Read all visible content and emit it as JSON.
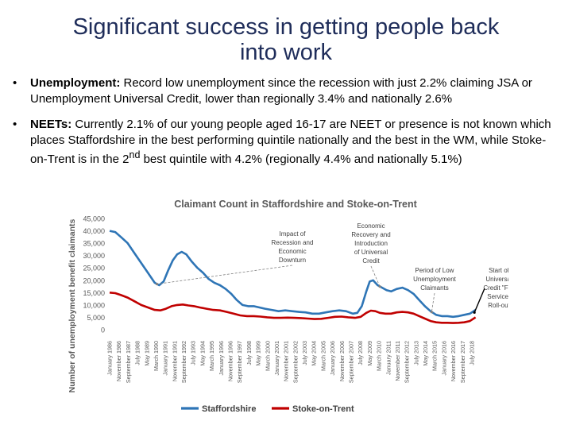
{
  "slide": {
    "title_line1": "Significant success in getting people back",
    "title_line2": "into work",
    "bullets": [
      {
        "marker": "•",
        "label": "Unemployment:",
        "text": " Record low unemployment since the recession with just 2.2% claiming JSA or Unemployment Universal Credit, lower than regionally 3.4% and nationally 2.6%"
      },
      {
        "marker": "•",
        "label": "NEETs:",
        "text_a": " Currently 2.1% of our young people aged 16-17 are NEET or presence is not known which places Staffordshire in the best performing quintile nationally and the best in the WM, while Stoke-on-Trent is in the 2",
        "sup": "nd",
        "text_b": " best quintile with 4.2% (regionally 4.4% and nationally 5.1%)"
      }
    ]
  },
  "chart_data": {
    "type": "line",
    "title": "Claimant Count in Staffordshire and Stoke-on-Trent",
    "ylabel": "Number of unemployment  benefit claimants",
    "ylim": [
      0,
      45000
    ],
    "yticks": [
      "0",
      "5,000",
      "10,000",
      "15,000",
      "20,000",
      "25,000",
      "30,000",
      "35,000",
      "40,000",
      "45,000"
    ],
    "xrange": [
      1986.0,
      2018.6
    ],
    "x_tick_labels": [
      "January 1986",
      "November 1986",
      "September 1987",
      "July 1988",
      "May 1989",
      "March 1990",
      "January 1991",
      "November 1991",
      "September 1992",
      "July 1993",
      "May 1994",
      "March 1995",
      "January 1996",
      "November 1996",
      "September 1997",
      "July 1998",
      "May 1999",
      "March 2000",
      "January 2001",
      "November 2001",
      "September 2002",
      "July 2003",
      "May 2004",
      "March 2005",
      "January 2006",
      "November 2006",
      "September 2007",
      "July 2008",
      "May 2009",
      "March 2010",
      "January 2011",
      "November 2011",
      "September 2012",
      "July 2013",
      "May 2014",
      "March 2015",
      "January 2016",
      "November 2016",
      "September 2017",
      "July 2018"
    ],
    "series": [
      {
        "name": "Staffordshire",
        "color": "#2e75b6",
        "points": [
          [
            1986.0,
            40000
          ],
          [
            1986.5,
            39500
          ],
          [
            1987.0,
            37500
          ],
          [
            1987.6,
            35000
          ],
          [
            1988.2,
            31000
          ],
          [
            1988.8,
            27000
          ],
          [
            1989.4,
            23000
          ],
          [
            1990.0,
            19000
          ],
          [
            1990.4,
            18000
          ],
          [
            1990.8,
            19500
          ],
          [
            1991.2,
            24000
          ],
          [
            1991.6,
            28000
          ],
          [
            1992.0,
            30500
          ],
          [
            1992.4,
            31500
          ],
          [
            1992.8,
            30500
          ],
          [
            1993.3,
            27500
          ],
          [
            1993.8,
            25000
          ],
          [
            1994.3,
            23000
          ],
          [
            1994.8,
            20500
          ],
          [
            1995.3,
            19000
          ],
          [
            1995.8,
            18000
          ],
          [
            1996.3,
            16500
          ],
          [
            1996.8,
            14500
          ],
          [
            1997.3,
            12000
          ],
          [
            1997.8,
            10000
          ],
          [
            1998.3,
            9500
          ],
          [
            1998.8,
            9500
          ],
          [
            1999.3,
            9000
          ],
          [
            1999.8,
            8500
          ],
          [
            2000.4,
            8000
          ],
          [
            2001.0,
            7500
          ],
          [
            2001.6,
            7800
          ],
          [
            2002.2,
            7500
          ],
          [
            2002.8,
            7200
          ],
          [
            2003.4,
            7000
          ],
          [
            2004.0,
            6500
          ],
          [
            2004.6,
            6500
          ],
          [
            2005.2,
            7000
          ],
          [
            2005.8,
            7500
          ],
          [
            2006.4,
            7800
          ],
          [
            2007.0,
            7500
          ],
          [
            2007.6,
            6500
          ],
          [
            2008.0,
            6800
          ],
          [
            2008.4,
            9500
          ],
          [
            2008.8,
            15500
          ],
          [
            2009.1,
            19500
          ],
          [
            2009.4,
            20000
          ],
          [
            2009.8,
            18000
          ],
          [
            2010.2,
            17000
          ],
          [
            2010.6,
            16000
          ],
          [
            2011.0,
            15500
          ],
          [
            2011.5,
            16500
          ],
          [
            2012.0,
            17000
          ],
          [
            2012.5,
            16000
          ],
          [
            2013.0,
            14500
          ],
          [
            2013.5,
            12000
          ],
          [
            2014.0,
            9500
          ],
          [
            2014.5,
            7500
          ],
          [
            2015.0,
            6000
          ],
          [
            2015.5,
            5500
          ],
          [
            2016.0,
            5500
          ],
          [
            2016.5,
            5200
          ],
          [
            2017.0,
            5500
          ],
          [
            2017.5,
            6000
          ],
          [
            2018.0,
            6500
          ],
          [
            2018.5,
            8000
          ]
        ]
      },
      {
        "name": "Stoke-on-Trent",
        "color": "#c00000",
        "points": [
          [
            1986.0,
            15000
          ],
          [
            1986.5,
            14800
          ],
          [
            1987.0,
            14000
          ],
          [
            1987.6,
            13000
          ],
          [
            1988.2,
            11500
          ],
          [
            1988.8,
            10000
          ],
          [
            1989.4,
            9000
          ],
          [
            1990.0,
            8000
          ],
          [
            1990.5,
            7800
          ],
          [
            1991.0,
            8500
          ],
          [
            1991.5,
            9500
          ],
          [
            1992.0,
            10000
          ],
          [
            1992.5,
            10200
          ],
          [
            1993.0,
            9800
          ],
          [
            1993.5,
            9500
          ],
          [
            1994.0,
            9000
          ],
          [
            1994.6,
            8500
          ],
          [
            1995.2,
            8000
          ],
          [
            1995.8,
            7800
          ],
          [
            1996.4,
            7200
          ],
          [
            1997.0,
            6500
          ],
          [
            1997.6,
            5800
          ],
          [
            1998.2,
            5500
          ],
          [
            1998.8,
            5500
          ],
          [
            1999.4,
            5300
          ],
          [
            2000.0,
            5000
          ],
          [
            2000.6,
            4800
          ],
          [
            2001.2,
            4800
          ],
          [
            2001.8,
            4900
          ],
          [
            2002.4,
            4800
          ],
          [
            2003.0,
            4700
          ],
          [
            2003.6,
            4500
          ],
          [
            2004.2,
            4300
          ],
          [
            2004.8,
            4400
          ],
          [
            2005.4,
            4800
          ],
          [
            2006.0,
            5200
          ],
          [
            2006.6,
            5300
          ],
          [
            2007.2,
            5000
          ],
          [
            2007.8,
            4800
          ],
          [
            2008.3,
            5200
          ],
          [
            2008.8,
            6800
          ],
          [
            2009.2,
            7700
          ],
          [
            2009.6,
            7500
          ],
          [
            2010.0,
            6800
          ],
          [
            2010.5,
            6500
          ],
          [
            2011.0,
            6500
          ],
          [
            2011.5,
            7000
          ],
          [
            2012.0,
            7200
          ],
          [
            2012.5,
            7000
          ],
          [
            2013.0,
            6500
          ],
          [
            2013.5,
            5500
          ],
          [
            2014.0,
            4500
          ],
          [
            2014.5,
            3500
          ],
          [
            2015.0,
            3000
          ],
          [
            2015.5,
            2800
          ],
          [
            2016.0,
            2800
          ],
          [
            2016.5,
            2700
          ],
          [
            2017.0,
            2800
          ],
          [
            2017.5,
            3000
          ],
          [
            2018.0,
            3500
          ],
          [
            2018.5,
            5000
          ]
        ]
      }
    ],
    "annotations": [
      {
        "lines": [
          "Impact of",
          "Recession and",
          "Economic",
          "Downturn"
        ],
        "x": 1990.2,
        "y": 17500
      },
      {
        "lines": [
          "Economic",
          "Recovery and",
          "Introduction",
          "of Universal",
          "Credit"
        ],
        "x": 2010.0,
        "y": 16500
      },
      {
        "lines": [
          "Period of Low",
          "Unemployment",
          "Claimants"
        ],
        "x": 2014.6,
        "y": 6200
      },
      {
        "lines": [
          "Start of",
          "Universal",
          "Credit \"Full",
          "Service\"",
          "Roll-out"
        ],
        "x": 2018.4,
        "y": 6000
      }
    ],
    "legend_position": "bottom",
    "grid": false
  }
}
